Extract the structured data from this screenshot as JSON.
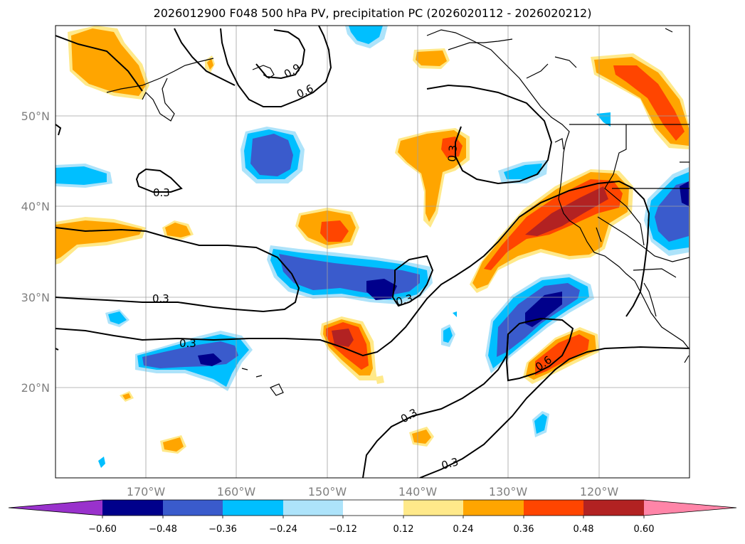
{
  "title": "2026012900 F048 500 hPa PV, precipitation PC (2026020112 - 2026020212)",
  "map": {
    "lon_range": [
      -180,
      -110
    ],
    "lat_range": [
      10,
      60
    ],
    "lat_labels": [
      "50°N",
      "40°N",
      "30°N",
      "20°N"
    ],
    "lon_labels": [
      "170°W",
      "160°W",
      "150°W",
      "140°W",
      "130°W",
      "120°W"
    ],
    "gridlines": true,
    "contour_labels": [
      "0.9",
      "0.6",
      "0.3",
      "0.3",
      "0.3",
      "0.3",
      "0.3",
      "0.6",
      "0.3",
      "0.3"
    ]
  },
  "colorbar": {
    "ticks": [
      "−0.60",
      "−0.48",
      "−0.36",
      "−0.24",
      "−0.12",
      "0.12",
      "0.24",
      "0.36",
      "0.48",
      "0.60"
    ],
    "colors": {
      "lt_neg060": "#9932CC",
      "neg060_neg048": "#00008B",
      "neg048_neg036": "#3A5BCC",
      "neg036_neg024": "#00BFFF",
      "neg024_neg012": "#ADE3FA",
      "neg012_012": "#FFFFFF",
      "p012_p024": "#FFE98A",
      "p024_p036": "#FFA500",
      "p036_p048": "#FF4500",
      "p048_p060": "#B22222",
      "gt_p060": "#FF85A8"
    }
  }
}
